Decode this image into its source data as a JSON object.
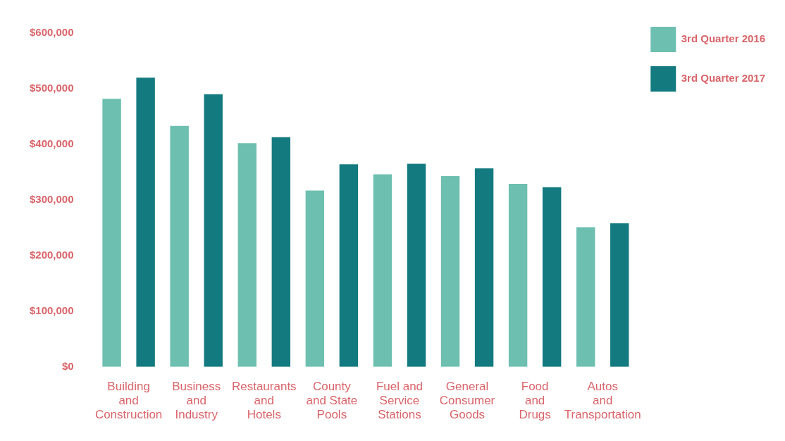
{
  "chart_data": {
    "type": "bar",
    "categories": [
      "Building\nand\nConstruction",
      "Business\nand\nIndustry",
      "Restaurants\nand\nHotels",
      "County\nand State\nPools",
      "Fuel and\nService\nStations",
      "General\nConsumer\nGoods",
      "Food\nand\nDrugs",
      "Autos\nand\nTransportation"
    ],
    "series": [
      {
        "name": "3rd Quarter 2016",
        "color": "#6dbfb0",
        "values": [
          482000,
          433000,
          402000,
          317000,
          346000,
          343000,
          329000,
          251000
        ]
      },
      {
        "name": "3rd Quarter 2017",
        "color": "#137a80",
        "values": [
          520000,
          490000,
          413000,
          364000,
          365000,
          357000,
          323000,
          258000
        ]
      }
    ],
    "ylim": [
      0,
      600000
    ],
    "yticks": [
      {
        "value": 0,
        "label": "$0"
      },
      {
        "value": 100000,
        "label": "$100,000"
      },
      {
        "value": 200000,
        "label": "$200,000"
      },
      {
        "value": 300000,
        "label": "$300,000"
      },
      {
        "value": 400000,
        "label": "$400,000"
      },
      {
        "value": 500000,
        "label": "$500,000"
      },
      {
        "value": 600000,
        "label": "$600,000"
      }
    ],
    "grid": false,
    "legend": "top right"
  }
}
